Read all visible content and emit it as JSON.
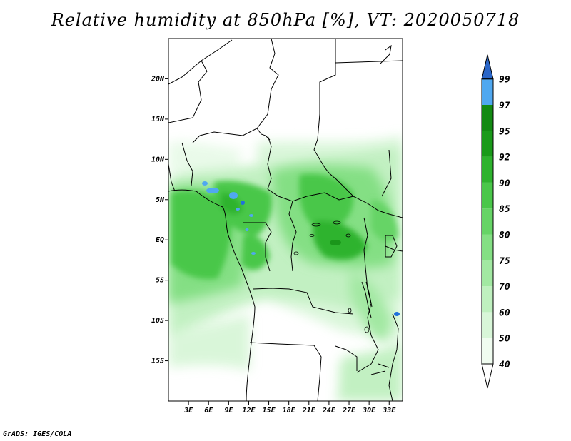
{
  "title": "Relative humidity at 850hPa [%], VT: 2020050718",
  "credit": "GrADS: IGES/COLA",
  "map": {
    "type": "filled-contour",
    "lon_range": [
      0,
      35
    ],
    "lat_range": [
      -20,
      25
    ],
    "lat_ticks": [
      {
        "value": 20,
        "label": "20N"
      },
      {
        "value": 15,
        "label": "15N"
      },
      {
        "value": 10,
        "label": "10N"
      },
      {
        "value": 5,
        "label": "5N"
      },
      {
        "value": 0,
        "label": "EQ"
      },
      {
        "value": -5,
        "label": "5S"
      },
      {
        "value": -10,
        "label": "10S"
      },
      {
        "value": -15,
        "label": "15S"
      }
    ],
    "lon_ticks": [
      {
        "value": 3,
        "label": "3E"
      },
      {
        "value": 6,
        "label": "6E"
      },
      {
        "value": 9,
        "label": "9E"
      },
      {
        "value": 12,
        "label": "12E"
      },
      {
        "value": 15,
        "label": "15E"
      },
      {
        "value": 18,
        "label": "18E"
      },
      {
        "value": 21,
        "label": "21E"
      },
      {
        "value": 24,
        "label": "24E"
      },
      {
        "value": 27,
        "label": "27E"
      },
      {
        "value": 30,
        "label": "30E"
      },
      {
        "value": 33,
        "label": "33E"
      }
    ]
  },
  "colorbar": {
    "levels": [
      {
        "label": "40",
        "color": "#f0fcf0"
      },
      {
        "label": "50",
        "color": "#d8f6d8"
      },
      {
        "label": "60",
        "color": "#bff0bf"
      },
      {
        "label": "70",
        "color": "#a2e8a2"
      },
      {
        "label": "75",
        "color": "#84df84"
      },
      {
        "label": "80",
        "color": "#66d466"
      },
      {
        "label": "85",
        "color": "#4ac74a"
      },
      {
        "label": "90",
        "color": "#2eb32e"
      },
      {
        "label": "92",
        "color": "#1a9a1a"
      },
      {
        "label": "95",
        "color": "#138a13"
      },
      {
        "label": "97",
        "color": "#50a8f0"
      },
      {
        "label": "99",
        "color": "#1f70dc"
      }
    ],
    "low_color": "#ffffff",
    "high_color": "#2a66c8"
  }
}
